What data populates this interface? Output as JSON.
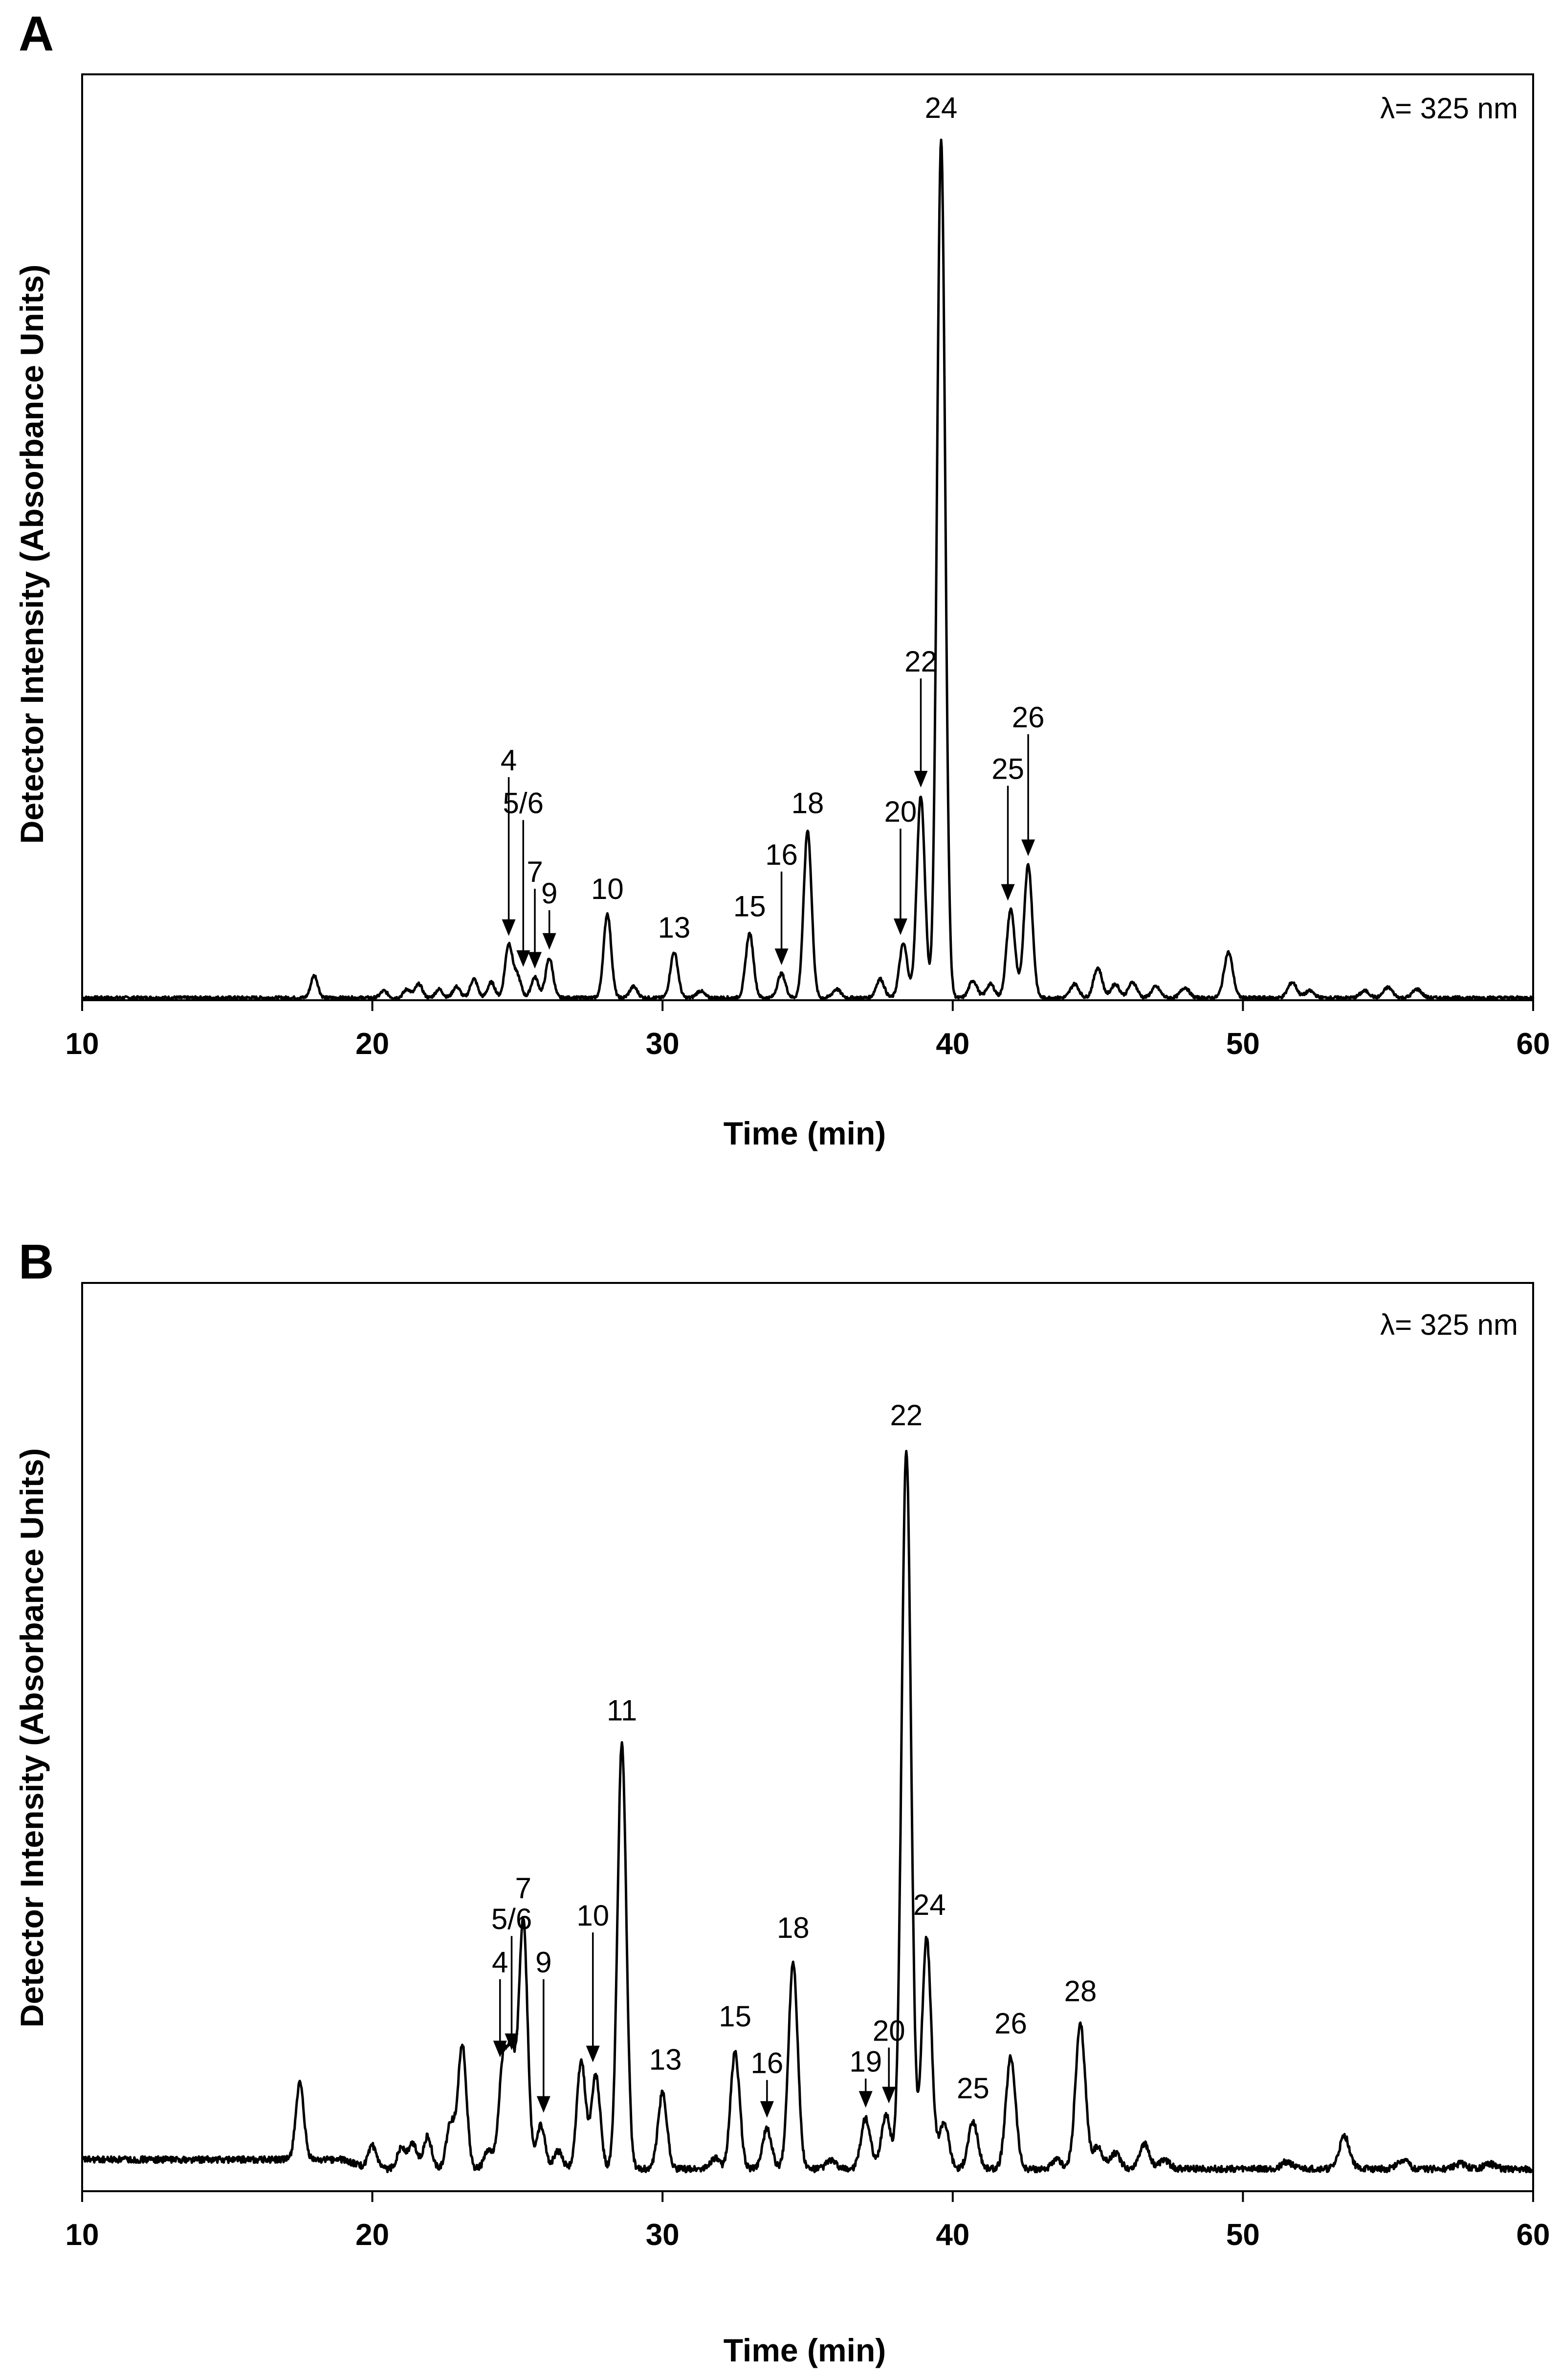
{
  "chart_data": [
    {
      "type": "line",
      "panel": "A",
      "title": "",
      "xlabel": "Time (min)",
      "ylabel": "Detector Intensity (Absorbance Units)",
      "xlim": [
        10,
        60
      ],
      "ylim": [
        0,
        100
      ],
      "xticks": [
        10,
        20,
        30,
        40,
        50,
        60
      ],
      "grid": false,
      "annotation": "λ= 325 nm",
      "peaks": [
        {
          "t": 18.0,
          "h": 2.6
        },
        {
          "t": 20.4,
          "h": 0.8
        },
        {
          "t": 21.2,
          "h": 1.0
        },
        {
          "t": 21.6,
          "h": 1.6
        },
        {
          "t": 22.3,
          "h": 1.0
        },
        {
          "t": 22.9,
          "h": 1.3
        },
        {
          "t": 23.5,
          "h": 2.2
        },
        {
          "t": 24.1,
          "h": 1.8
        },
        {
          "t": 24.7,
          "h": 6.2
        },
        {
          "t": 25.0,
          "h": 2.5
        },
        {
          "t": 25.6,
          "h": 2.4
        },
        {
          "t": 26.1,
          "h": 4.6
        },
        {
          "t": 28.1,
          "h": 9.8
        },
        {
          "t": 29.0,
          "h": 1.3
        },
        {
          "t": 30.4,
          "h": 5.3
        },
        {
          "t": 31.3,
          "h": 0.8
        },
        {
          "t": 33.0,
          "h": 7.5
        },
        {
          "t": 34.1,
          "h": 2.8
        },
        {
          "t": 35.0,
          "h": 19.5
        },
        {
          "t": 36.0,
          "h": 1.0
        },
        {
          "t": 37.5,
          "h": 2.2
        },
        {
          "t": 38.3,
          "h": 6.3
        },
        {
          "t": 38.9,
          "h": 23.5
        },
        {
          "t": 39.6,
          "h": 100
        },
        {
          "t": 40.7,
          "h": 2.0
        },
        {
          "t": 41.3,
          "h": 1.6
        },
        {
          "t": 42.0,
          "h": 10.3
        },
        {
          "t": 42.6,
          "h": 15.5
        },
        {
          "t": 44.2,
          "h": 1.6
        },
        {
          "t": 45.0,
          "h": 3.5
        },
        {
          "t": 45.6,
          "h": 1.6
        },
        {
          "t": 46.2,
          "h": 1.8
        },
        {
          "t": 47.0,
          "h": 1.3
        },
        {
          "t": 48.0,
          "h": 1.2
        },
        {
          "t": 49.5,
          "h": 5.3
        },
        {
          "t": 51.7,
          "h": 1.8
        },
        {
          "t": 52.3,
          "h": 0.8
        },
        {
          "t": 54.2,
          "h": 0.8
        },
        {
          "t": 55.0,
          "h": 1.2
        },
        {
          "t": 56.0,
          "h": 1.0
        }
      ],
      "labels": [
        {
          "text": "4",
          "t": 24.7,
          "arrow": true,
          "label_y": 26.5,
          "tip_y": 7.2
        },
        {
          "text": "5/6",
          "t": 25.2,
          "arrow": true,
          "label_y": 21.5,
          "tip_y": 3.6
        },
        {
          "text": "7",
          "t": 25.6,
          "arrow": true,
          "label_y": 13.5,
          "tip_y": 3.4
        },
        {
          "text": "9",
          "t": 26.1,
          "arrow": true,
          "label_y": 11.0,
          "tip_y": 5.6
        },
        {
          "text": "10",
          "t": 28.1,
          "arrow": false,
          "label_y": 11.5
        },
        {
          "text": "13",
          "t": 30.4,
          "arrow": false,
          "label_y": 7.0
        },
        {
          "text": "15",
          "t": 33.0,
          "arrow": false,
          "label_y": 9.5
        },
        {
          "text": "16",
          "t": 34.1,
          "arrow": true,
          "label_y": 15.5,
          "tip_y": 3.8
        },
        {
          "text": "18",
          "t": 35.0,
          "arrow": false,
          "label_y": 21.5
        },
        {
          "text": "20",
          "t": 38.2,
          "arrow": true,
          "label_y": 20.5,
          "tip_y": 7.3
        },
        {
          "text": "22",
          "t": 38.9,
          "arrow": true,
          "label_y": 38.0,
          "tip_y": 24.5
        },
        {
          "text": "24",
          "t": 39.6,
          "arrow": false,
          "label_y": 102.5
        },
        {
          "text": "25",
          "t": 41.9,
          "arrow": true,
          "label_y": 25.5,
          "tip_y": 11.3
        },
        {
          "text": "26",
          "t": 42.6,
          "arrow": true,
          "label_y": 31.5,
          "tip_y": 16.5
        }
      ]
    },
    {
      "type": "line",
      "panel": "B",
      "title": "",
      "xlabel": "Time (min)",
      "ylabel": "Detector Intensity (Absorbance Units)",
      "xlim": [
        10,
        60
      ],
      "ylim": [
        0,
        100
      ],
      "xticks": [
        10,
        20,
        30,
        40,
        50,
        60
      ],
      "grid": false,
      "annotation": "λ= 325 nm",
      "peaks": [
        {
          "t": 17.5,
          "h": 10.5
        },
        {
          "t": 20.0,
          "h": 3.2
        },
        {
          "t": 21.0,
          "h": 3.0
        },
        {
          "t": 21.4,
          "h": 3.5
        },
        {
          "t": 21.9,
          "h": 4.5
        },
        {
          "t": 22.7,
          "h": 6.3
        },
        {
          "t": 23.1,
          "h": 17.2
        },
        {
          "t": 24.0,
          "h": 2.5
        },
        {
          "t": 24.5,
          "h": 14.0
        },
        {
          "t": 24.8,
          "h": 15.0
        },
        {
          "t": 25.2,
          "h": 34.5
        },
        {
          "t": 25.8,
          "h": 6.0
        },
        {
          "t": 26.4,
          "h": 2.5
        },
        {
          "t": 27.2,
          "h": 15.0
        },
        {
          "t": 27.7,
          "h": 13.0
        },
        {
          "t": 28.6,
          "h": 59.0
        },
        {
          "t": 30.0,
          "h": 10.5
        },
        {
          "t": 31.8,
          "h": 1.5
        },
        {
          "t": 32.5,
          "h": 16.2
        },
        {
          "t": 33.6,
          "h": 5.5
        },
        {
          "t": 34.5,
          "h": 28.8
        },
        {
          "t": 35.8,
          "h": 1.2
        },
        {
          "t": 37.0,
          "h": 7.0
        },
        {
          "t": 37.7,
          "h": 7.5
        },
        {
          "t": 38.4,
          "h": 100
        },
        {
          "t": 39.1,
          "h": 32.0
        },
        {
          "t": 39.7,
          "h": 6.5
        },
        {
          "t": 40.7,
          "h": 6.5
        },
        {
          "t": 42.0,
          "h": 15.5
        },
        {
          "t": 43.6,
          "h": 1.2
        },
        {
          "t": 44.4,
          "h": 20.0
        },
        {
          "t": 45.0,
          "h": 3.0
        },
        {
          "t": 45.6,
          "h": 2.2
        },
        {
          "t": 46.6,
          "h": 3.5
        },
        {
          "t": 47.3,
          "h": 1.2
        },
        {
          "t": 51.5,
          "h": 1.0
        },
        {
          "t": 53.5,
          "h": 4.5
        },
        {
          "t": 55.5,
          "h": 1.3
        },
        {
          "t": 57.5,
          "h": 0.7
        },
        {
          "t": 58.5,
          "h": 0.7
        }
      ],
      "labels": [
        {
          "text": "4",
          "t": 24.4,
          "arrow": true,
          "label_y": 27.0,
          "tip_y": 15.2
        },
        {
          "text": "5/6",
          "t": 24.8,
          "arrow": true,
          "label_y": 33.0,
          "tip_y": 16.2
        },
        {
          "text": "7",
          "t": 25.2,
          "arrow": false,
          "label_y": 37.3
        },
        {
          "text": "9",
          "t": 25.9,
          "arrow": true,
          "label_y": 27.0,
          "tip_y": 7.5
        },
        {
          "text": "10",
          "t": 27.6,
          "arrow": true,
          "label_y": 33.5,
          "tip_y": 14.5
        },
        {
          "text": "11",
          "t": 28.6,
          "arrow": false,
          "label_y": 62.0
        },
        {
          "text": "13",
          "t": 30.1,
          "arrow": false,
          "label_y": 13.5
        },
        {
          "text": "15",
          "t": 32.5,
          "arrow": false,
          "label_y": 19.5
        },
        {
          "text": "16",
          "t": 33.6,
          "arrow": true,
          "label_y": 13.0,
          "tip_y": 6.8
        },
        {
          "text": "18",
          "t": 34.5,
          "arrow": false,
          "label_y": 31.8
        },
        {
          "text": "19",
          "t": 37.0,
          "arrow": true,
          "label_y": 13.2,
          "tip_y": 8.2
        },
        {
          "text": "20",
          "t": 37.8,
          "arrow": true,
          "label_y": 17.5,
          "tip_y": 8.8
        },
        {
          "text": "22",
          "t": 38.4,
          "arrow": false,
          "label_y": 103.0
        },
        {
          "text": "24",
          "t": 39.2,
          "arrow": false,
          "label_y": 35.0
        },
        {
          "text": "25",
          "t": 40.7,
          "arrow": false,
          "label_y": 9.5
        },
        {
          "text": "26",
          "t": 42.0,
          "arrow": false,
          "label_y": 18.5
        },
        {
          "text": "28",
          "t": 44.4,
          "arrow": false,
          "label_y": 23.0
        }
      ]
    }
  ]
}
